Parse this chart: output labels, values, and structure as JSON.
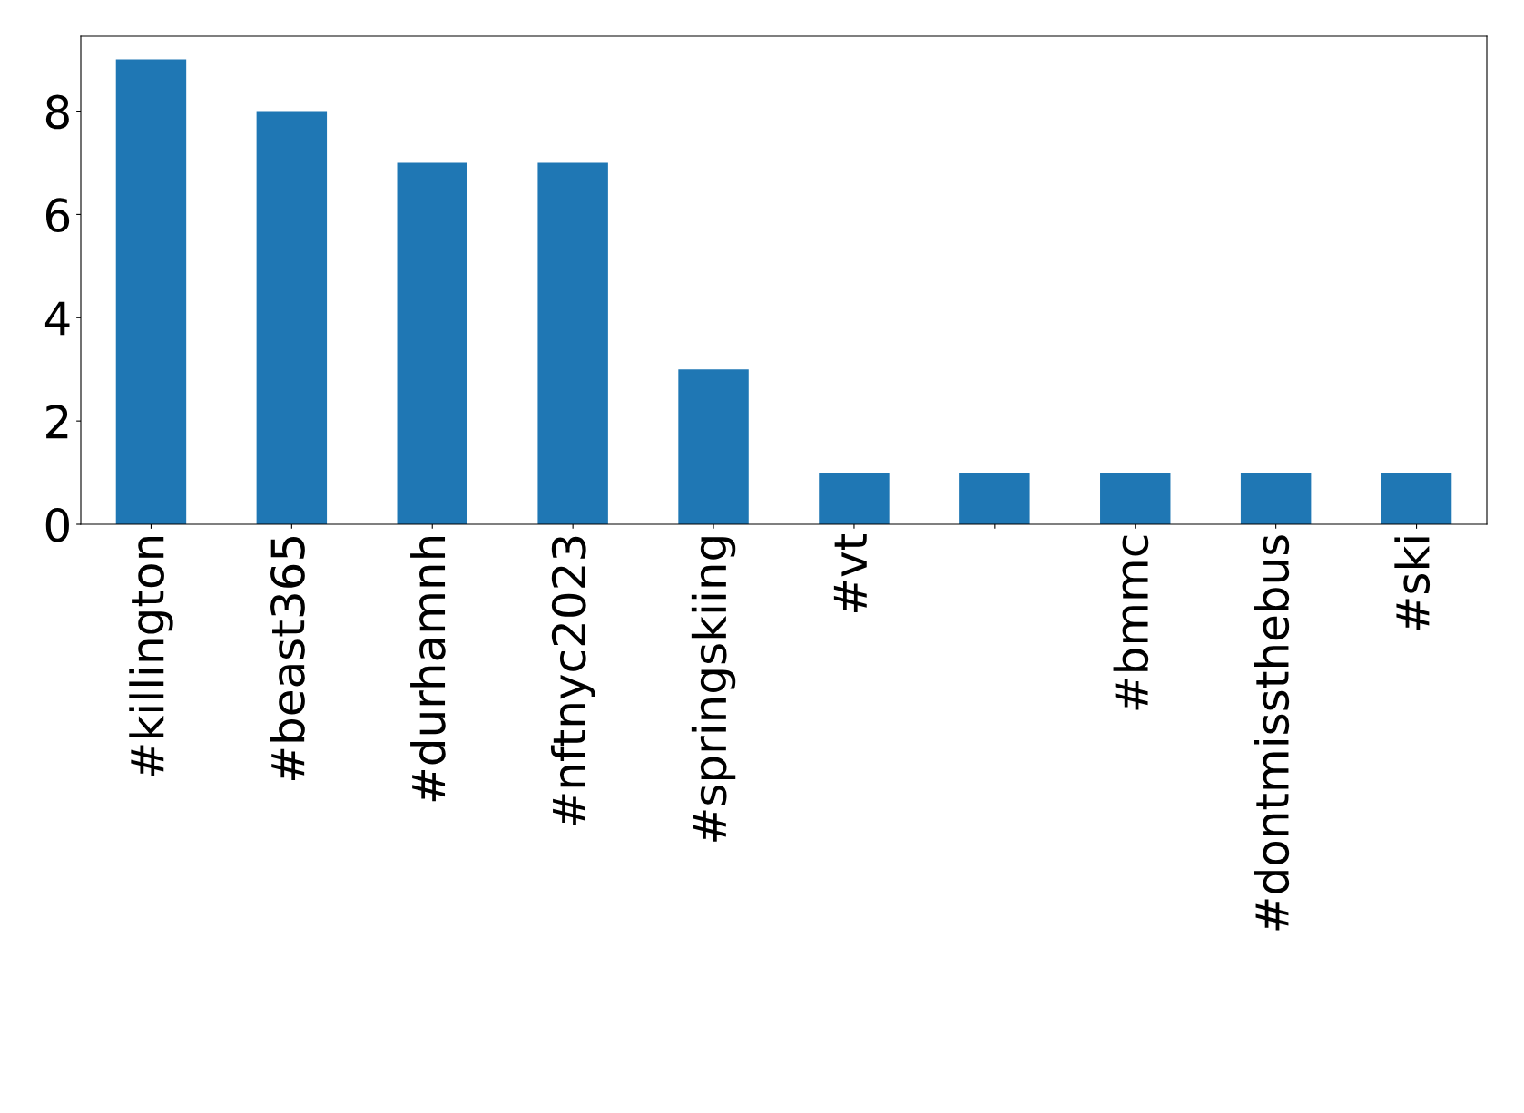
{
  "chart_data": {
    "type": "bar",
    "categories": [
      "#killington",
      "#beast365",
      "#durhamnh",
      "#nftnyc2023",
      "#springskiing",
      "#vt",
      null,
      "#bmmc",
      "#dontmissthebus",
      "#ski"
    ],
    "values": [
      9,
      8,
      7,
      7,
      3,
      1,
      1,
      1,
      1,
      1
    ],
    "color": "#1f77b4",
    "ylim": [
      0,
      9.45
    ],
    "yticks": [
      0,
      2,
      4,
      6,
      8
    ],
    "grid": false,
    "legend": false
  }
}
